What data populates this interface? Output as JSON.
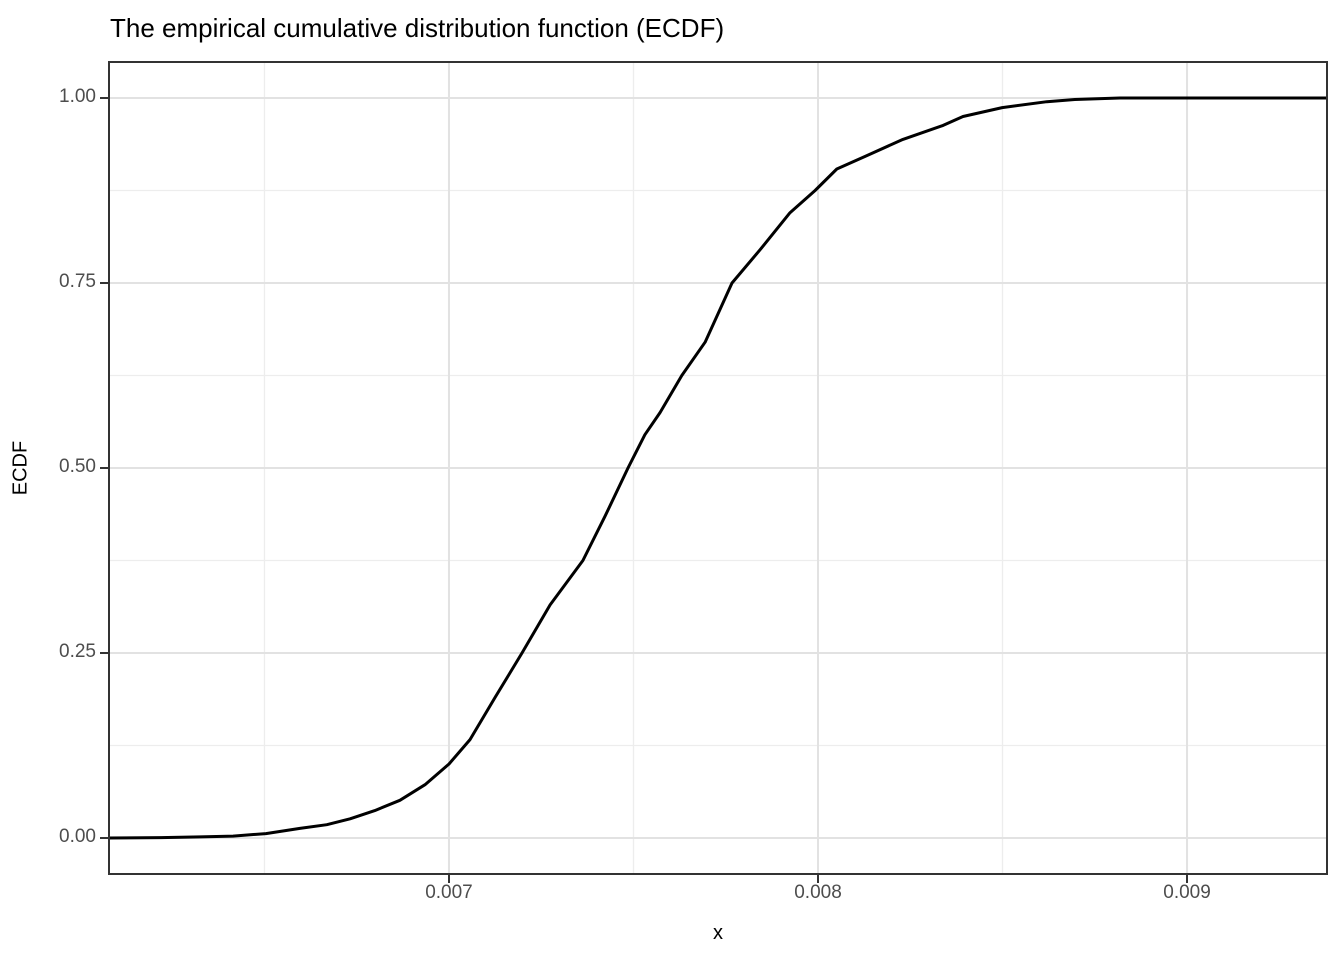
{
  "chart_data": {
    "type": "line",
    "title": "The empirical cumulative distribution function (ECDF)",
    "xlabel": "x",
    "ylabel": "ECDF",
    "grid": true,
    "legend": "none",
    "line_color": "#000000",
    "major_grid_color": "#e2e2e2",
    "minor_grid_color": "#ededed",
    "panel_border_color": "#333333",
    "tick_label_color": "#4d4d4d",
    "xlim": [
      0.006076,
      0.009382
    ],
    "ylim": [
      -0.05,
      1.05
    ],
    "x_ticks": [
      {
        "value": 0.007,
        "label": "0.007"
      },
      {
        "value": 0.008,
        "label": "0.008"
      },
      {
        "value": 0.009,
        "label": "0.009"
      }
    ],
    "x_minor_ticks": [
      0.0065,
      0.0075,
      0.0085
    ],
    "y_ticks": [
      {
        "value": 0.0,
        "label": "0.00"
      },
      {
        "value": 0.25,
        "label": "0.25"
      },
      {
        "value": 0.5,
        "label": "0.50"
      },
      {
        "value": 0.75,
        "label": "0.75"
      },
      {
        "value": 1.0,
        "label": "1.00"
      }
    ],
    "y_minor_ticks": [
      0.125,
      0.375,
      0.625,
      0.875
    ],
    "series": [
      {
        "name": "ecdf",
        "points": [
          [
            0.006076,
            0.0
          ],
          [
            0.00622,
            0.0005
          ],
          [
            0.006325,
            0.0015
          ],
          [
            0.006415,
            0.0025
          ],
          [
            0.006504,
            0.006
          ],
          [
            0.006596,
            0.013
          ],
          [
            0.006669,
            0.018
          ],
          [
            0.006732,
            0.026
          ],
          [
            0.006799,
            0.037
          ],
          [
            0.006867,
            0.051
          ],
          [
            0.006935,
            0.072
          ],
          [
            0.007,
            0.1
          ],
          [
            0.007057,
            0.133
          ],
          [
            0.007125,
            0.19
          ],
          [
            0.007198,
            0.25
          ],
          [
            0.007274,
            0.315
          ],
          [
            0.007363,
            0.375
          ],
          [
            0.007423,
            0.435
          ],
          [
            0.007485,
            0.5
          ],
          [
            0.007531,
            0.545
          ],
          [
            0.007572,
            0.575
          ],
          [
            0.007631,
            0.625
          ],
          [
            0.007694,
            0.67
          ],
          [
            0.007767,
            0.75
          ],
          [
            0.007843,
            0.795
          ],
          [
            0.007924,
            0.845
          ],
          [
            0.007992,
            0.875
          ],
          [
            0.008051,
            0.904
          ],
          [
            0.008127,
            0.921
          ],
          [
            0.00823,
            0.944
          ],
          [
            0.008339,
            0.963
          ],
          [
            0.008393,
            0.975
          ],
          [
            0.008499,
            0.987
          ],
          [
            0.00862,
            0.995
          ],
          [
            0.008696,
            0.998
          ],
          [
            0.008818,
            1.0
          ],
          [
            0.009382,
            1.0
          ]
        ]
      }
    ]
  }
}
